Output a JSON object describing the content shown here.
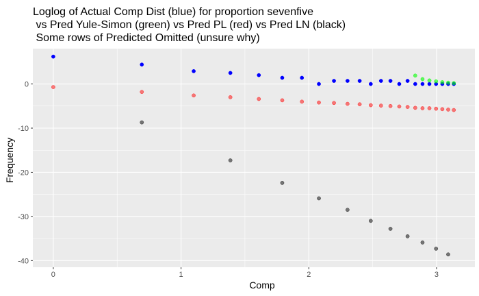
{
  "chart_data": {
    "type": "scatter",
    "title": [
      "Loglog of Actual Comp Dist (blue) for proportion sevenfive",
      " vs Pred Yule-Simon (green) vs Pred PL (red) vs Pred LN (black)",
      " Some rows of Predicted Omitted (unsure why)"
    ],
    "xlabel": "Comp",
    "ylabel": "Frequency",
    "xlim": [
      -0.16,
      3.3
    ],
    "ylim": [
      -41.5,
      8.0
    ],
    "xticks": [
      0,
      1,
      2,
      3
    ],
    "xtick_labels": [
      "0",
      "1",
      "2",
      "3"
    ],
    "yticks": [
      0,
      -10,
      -20,
      -30,
      -40
    ],
    "ytick_labels": [
      "0",
      "-10",
      "-20",
      "-30",
      "-40"
    ],
    "grid": true,
    "background": "#ebebeb",
    "series": [
      {
        "name": "Pred LN",
        "color": "#000000",
        "alpha": 0.5,
        "points": [
          [
            0.693,
            -8.7
          ],
          [
            1.386,
            -17.3
          ],
          [
            1.792,
            -22.4
          ],
          [
            2.079,
            -25.9
          ],
          [
            2.303,
            -28.5
          ],
          [
            2.485,
            -31.0
          ],
          [
            2.639,
            -32.8
          ],
          [
            2.773,
            -34.5
          ],
          [
            2.89,
            -35.9
          ],
          [
            2.996,
            -37.3
          ],
          [
            3.091,
            -38.6
          ]
        ]
      },
      {
        "name": "Pred PL",
        "color": "#ff0000",
        "alpha": 0.5,
        "points": [
          [
            0.0,
            -0.7
          ],
          [
            0.693,
            -1.8
          ],
          [
            1.099,
            -2.6
          ],
          [
            1.386,
            -3.0
          ],
          [
            1.609,
            -3.4
          ],
          [
            1.792,
            -3.7
          ],
          [
            1.946,
            -4.0
          ],
          [
            2.079,
            -4.2
          ],
          [
            2.197,
            -4.3
          ],
          [
            2.303,
            -4.5
          ],
          [
            2.398,
            -4.6
          ],
          [
            2.485,
            -4.8
          ],
          [
            2.565,
            -4.9
          ],
          [
            2.639,
            -5.0
          ],
          [
            2.708,
            -5.1
          ],
          [
            2.773,
            -5.2
          ],
          [
            2.833,
            -5.4
          ],
          [
            2.89,
            -5.5
          ],
          [
            2.944,
            -5.5
          ],
          [
            2.996,
            -5.6
          ],
          [
            3.045,
            -5.7
          ],
          [
            3.091,
            -5.8
          ],
          [
            3.135,
            -5.9
          ]
        ]
      },
      {
        "name": "Actual",
        "color": "#0000ff",
        "alpha": 1.0,
        "points": [
          [
            0.0,
            6.2
          ],
          [
            0.693,
            4.4
          ],
          [
            1.099,
            2.9
          ],
          [
            1.386,
            2.5
          ],
          [
            1.609,
            2.0
          ],
          [
            1.792,
            1.4
          ],
          [
            1.946,
            1.4
          ],
          [
            2.079,
            0.0
          ],
          [
            2.197,
            0.7
          ],
          [
            2.303,
            0.7
          ],
          [
            2.398,
            0.7
          ],
          [
            2.485,
            0.0
          ],
          [
            2.565,
            0.7
          ],
          [
            2.639,
            0.7
          ],
          [
            2.708,
            0.0
          ],
          [
            2.773,
            0.7
          ],
          [
            2.833,
            0.0
          ],
          [
            2.89,
            0.0
          ],
          [
            2.944,
            0.0
          ],
          [
            2.996,
            0.0
          ],
          [
            3.045,
            0.0
          ],
          [
            3.091,
            0.0
          ],
          [
            3.135,
            0.0
          ]
        ]
      },
      {
        "name": "Pred Yule-Simon",
        "color": "#00ff00",
        "alpha": 0.6,
        "points": [
          [
            2.833,
            1.9
          ],
          [
            2.89,
            1.1
          ],
          [
            2.944,
            0.8
          ],
          [
            2.996,
            0.6
          ],
          [
            3.045,
            0.4
          ],
          [
            3.091,
            0.3
          ],
          [
            3.135,
            0.2
          ]
        ]
      }
    ]
  }
}
